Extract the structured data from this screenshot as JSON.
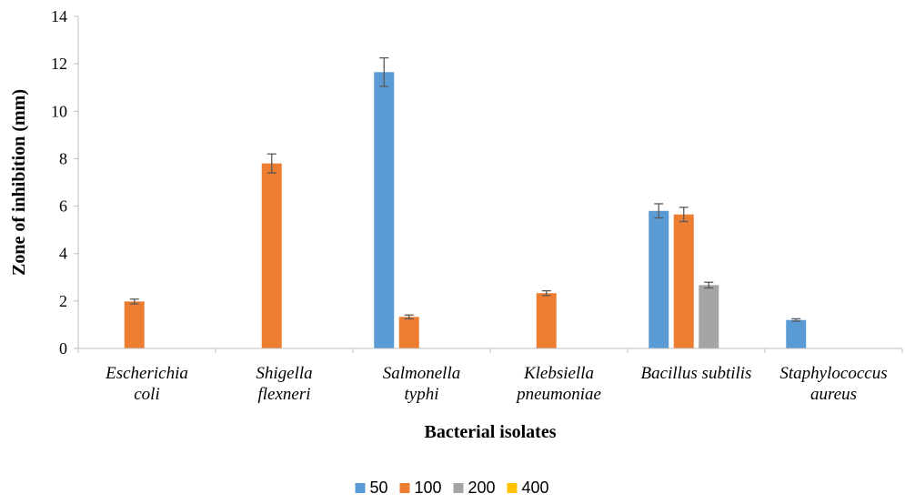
{
  "chart_data": {
    "type": "bar",
    "title": "",
    "xlabel": "Bacterial isolates",
    "ylabel": "Zone of inhibition (mm)",
    "ylim": [
      0,
      14
    ],
    "yticks": [
      0,
      2,
      4,
      6,
      8,
      10,
      12,
      14
    ],
    "grid": false,
    "legend_position": "bottom",
    "categories": [
      [
        "Escherichia",
        "coli"
      ],
      [
        "Shigella",
        "flexneri"
      ],
      [
        "Salmonella",
        "typhi"
      ],
      [
        "Klebsiella",
        "pneumoniae"
      ],
      [
        "Bacillus subtilis"
      ],
      [
        "Staphylococcus",
        "aureus"
      ]
    ],
    "series": [
      {
        "name": "50",
        "color": "#5B9BD5",
        "values": [
          0,
          0,
          11.65,
          0,
          5.8,
          1.2
        ],
        "errors": [
          0,
          0,
          0.6,
          0,
          0.3,
          0.05
        ]
      },
      {
        "name": "100",
        "color": "#ED7D31",
        "values": [
          1.98,
          7.8,
          1.33,
          2.33,
          5.65,
          0
        ],
        "errors": [
          0.1,
          0.4,
          0.08,
          0.1,
          0.3,
          0
        ]
      },
      {
        "name": "200",
        "color": "#A5A5A5",
        "values": [
          0,
          0,
          0,
          0,
          2.67,
          0
        ],
        "errors": [
          0,
          0,
          0,
          0,
          0.12,
          0
        ]
      },
      {
        "name": "400",
        "color": "#FFC000",
        "values": [
          0,
          0,
          0,
          0,
          0,
          0
        ],
        "errors": [
          0,
          0,
          0,
          0,
          0,
          0
        ]
      }
    ]
  }
}
